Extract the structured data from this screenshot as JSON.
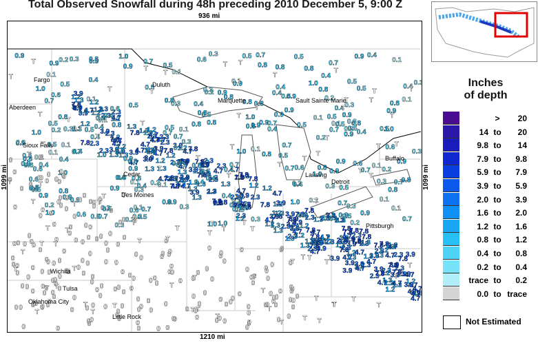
{
  "title": "Total Observed Snowfall during 48h preceding 2010 December 5, 9:00 Z",
  "scale": {
    "top": "936 mi",
    "bottom": "1210 mi",
    "left": "1099 mi",
    "right": "1099 mi"
  },
  "cities": [
    {
      "name": "Fargo",
      "key": "fargo"
    },
    {
      "name": "Duluth",
      "key": "duluth"
    },
    {
      "name": "Aberdeen",
      "key": "aberdeen"
    },
    {
      "name": "Sioux Falls",
      "key": "siouxfalls"
    },
    {
      "name": "Marquette",
      "key": "marquette"
    },
    {
      "name": "Sault Sainte Marie",
      "key": "sault"
    },
    {
      "name": "Cedar",
      "key": "cedar"
    },
    {
      "name": "Des Moines",
      "key": "desmoines"
    },
    {
      "name": "Detroit",
      "key": "detroit"
    },
    {
      "name": "Buffalo",
      "key": "buffalo"
    },
    {
      "name": "Wichita",
      "key": "wichita"
    },
    {
      "name": "Tulsa",
      "key": "tulsa"
    },
    {
      "name": "Oklahoma City",
      "key": "okc"
    },
    {
      "name": "Little Rock",
      "key": "littlerock"
    },
    {
      "name": "Lansing",
      "key": "lansing"
    },
    {
      "name": "Pittsburgh",
      "key": "pittsburgh"
    }
  ],
  "sample_observations": [
    {
      "value": "0.9",
      "color_bin": "0.8-1.2"
    },
    {
      "value": "0.5",
      "color_bin": "0.4-0.8"
    },
    {
      "value": "0.2",
      "color_bin": "0.2-0.4"
    },
    {
      "value": "1.0",
      "color_bin": "0.8-1.2"
    },
    {
      "value": "2.3",
      "color_bin": "2.0-3.9"
    },
    {
      "value": "1.3",
      "color_bin": "1.2-1.6"
    },
    {
      "value": "0.1",
      "color_bin": "trace-0.2"
    },
    {
      "value": "T",
      "color_bin": "trace"
    },
    {
      "value": "0",
      "color_bin": "0.0"
    },
    {
      "value": "3.9",
      "color_bin": "3.9-5.9"
    },
    {
      "value": "7.8",
      "color_bin": "5.9-7.9"
    },
    {
      "value": "4.7",
      "color_bin": "3.9-5.9"
    },
    {
      "value": "0.7",
      "color_bin": "0.4-0.8"
    },
    {
      "value": "0.4",
      "color_bin": "0.4-0.8"
    },
    {
      "value": "0.3",
      "color_bin": "0.2-0.4"
    },
    {
      "value": "1.2",
      "color_bin": "1.2-1.6"
    },
    {
      "value": "0.6",
      "color_bin": "0.4-0.8"
    },
    {
      "value": "0.8",
      "color_bin": "0.8-1.2"
    }
  ],
  "legend": {
    "title_line1": "Inches",
    "title_line2": "of depth",
    "bins": [
      {
        "lo": "",
        "to": ">",
        "hi": "20",
        "color": "#4a0d8f"
      },
      {
        "lo": "14",
        "to": "to",
        "hi": "20",
        "color": "#2a18a8"
      },
      {
        "lo": "9.8",
        "to": "to",
        "hi": "14",
        "color": "#1a1cbc"
      },
      {
        "lo": "7.9",
        "to": "to",
        "hi": "9.8",
        "color": "#1028d0"
      },
      {
        "lo": "5.9",
        "to": "to",
        "hi": "7.9",
        "color": "#0a3ee0"
      },
      {
        "lo": "3.9",
        "to": "to",
        "hi": "5.9",
        "color": "#0a58ec"
      },
      {
        "lo": "2.0",
        "to": "to",
        "hi": "3.9",
        "color": "#0c72f2"
      },
      {
        "lo": "1.6",
        "to": "to",
        "hi": "2.0",
        "color": "#1090f4"
      },
      {
        "lo": "1.2",
        "to": "to",
        "hi": "1.6",
        "color": "#1aa8f4"
      },
      {
        "lo": "0.8",
        "to": "to",
        "hi": "1.2",
        "color": "#28c0f4"
      },
      {
        "lo": "0.4",
        "to": "to",
        "hi": "0.8",
        "color": "#4cd4f6"
      },
      {
        "lo": "0.2",
        "to": "to",
        "hi": "0.4",
        "color": "#78e2f8"
      },
      {
        "lo": "trace",
        "to": "to",
        "hi": "0.2",
        "color": "#b0eefa"
      },
      {
        "lo": "0.0",
        "to": "to",
        "hi": "trace",
        "color": "#d4d4d4"
      }
    ],
    "not_estimated": "Not Estimated"
  },
  "colors": {
    "state_lines": "#c8c8c8",
    "country_line": "#000000",
    "inset_highlight": "#e00000"
  }
}
